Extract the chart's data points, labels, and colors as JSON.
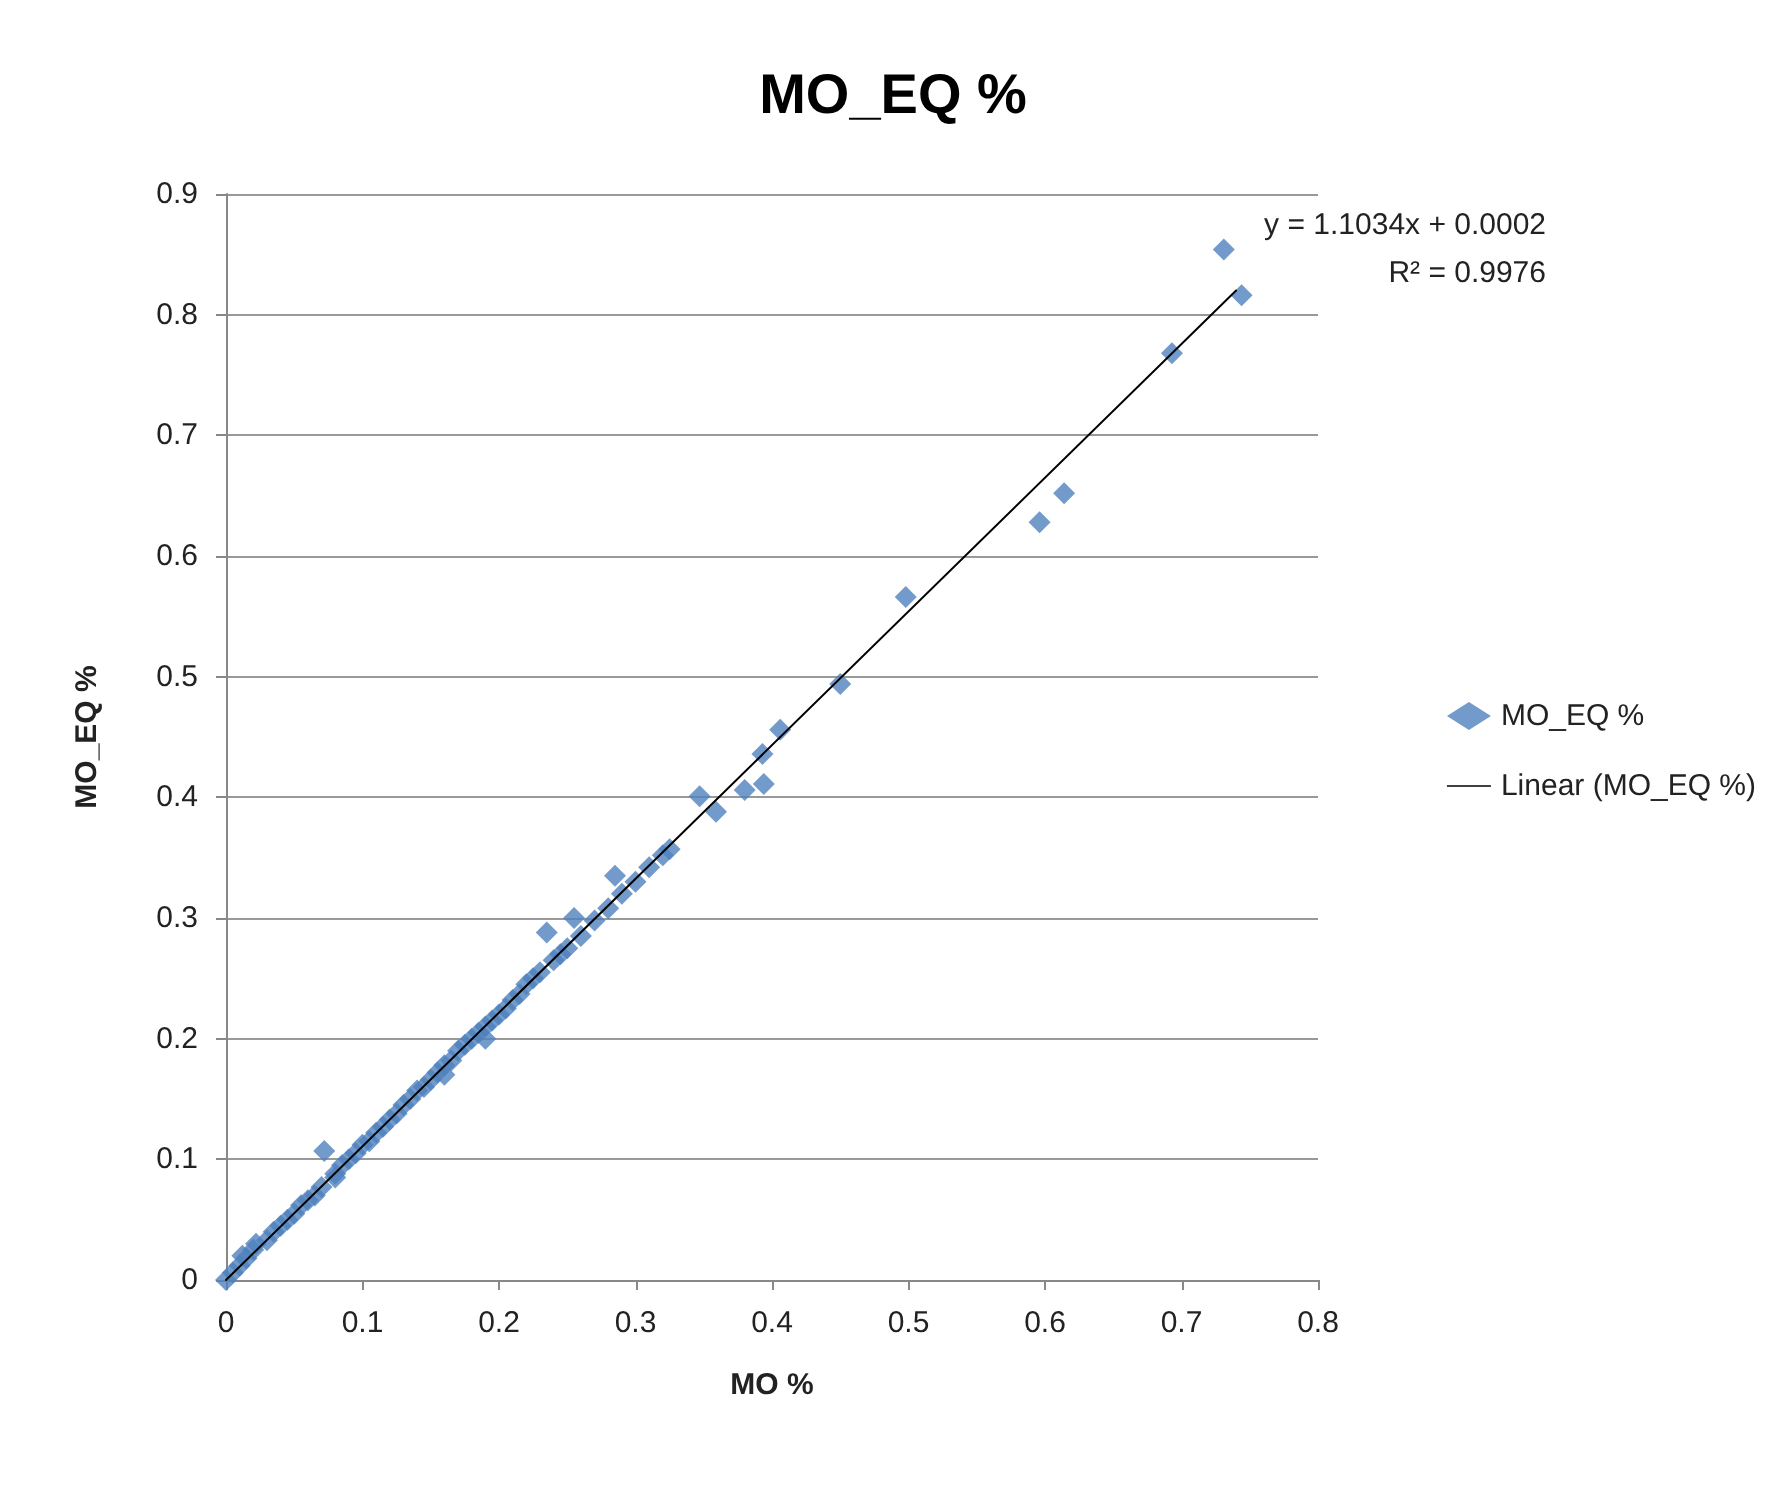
{
  "chart_data": {
    "type": "scatter",
    "title": "MO_EQ %",
    "xlabel": "MO %",
    "ylabel": "MO_EQ %",
    "annotations": [
      "y = 1.1034x + 0.0002",
      "R² = 0.9976"
    ],
    "xlim": [
      0,
      0.8
    ],
    "xticks": [
      0,
      0.1,
      0.2,
      0.3,
      0.4,
      0.5,
      0.6,
      0.7,
      0.8
    ],
    "ylim": [
      0,
      0.9
    ],
    "yticks": [
      0,
      0.1,
      0.2,
      0.3,
      0.4,
      0.5,
      0.6,
      0.7,
      0.8,
      0.9
    ],
    "grid": "y",
    "legend": "right",
    "marker": "diamond",
    "series": [
      {
        "name": "MO_EQ %",
        "color": "#4f81bd",
        "x": [
          0,
          0.005,
          0.01,
          0.012,
          0.015,
          0.02,
          0.022,
          0.03,
          0.035,
          0.04,
          0.045,
          0.05,
          0.055,
          0.06,
          0.065,
          0.07,
          0.072,
          0.08,
          0.08,
          0.085,
          0.09,
          0.095,
          0.1,
          0.105,
          0.11,
          0.115,
          0.12,
          0.125,
          0.13,
          0.135,
          0.14,
          0.145,
          0.15,
          0.155,
          0.16,
          0.16,
          0.165,
          0.17,
          0.175,
          0.18,
          0.185,
          0.19,
          0.19,
          0.195,
          0.2,
          0.205,
          0.21,
          0.215,
          0.22,
          0.225,
          0.23,
          0.235,
          0.24,
          0.245,
          0.25,
          0.255,
          0.26,
          0.27,
          0.28,
          0.285,
          0.29,
          0.3,
          0.31,
          0.32,
          0.325,
          0.347,
          0.359,
          0.38,
          0.393,
          0.394,
          0.406,
          0.45,
          0.498,
          0.596,
          0.614,
          0.693,
          0.731,
          0.744
        ],
        "values": [
          0,
          0.006,
          0.012,
          0.02,
          0.018,
          0.025,
          0.03,
          0.033,
          0.04,
          0.045,
          0.05,
          0.055,
          0.062,
          0.066,
          0.07,
          0.077,
          0.107,
          0.088,
          0.085,
          0.095,
          0.1,
          0.105,
          0.112,
          0.115,
          0.122,
          0.127,
          0.133,
          0.138,
          0.145,
          0.15,
          0.157,
          0.16,
          0.166,
          0.172,
          0.178,
          0.17,
          0.182,
          0.19,
          0.195,
          0.2,
          0.205,
          0.21,
          0.2,
          0.215,
          0.22,
          0.225,
          0.232,
          0.237,
          0.245,
          0.25,
          0.255,
          0.288,
          0.265,
          0.27,
          0.275,
          0.3,
          0.285,
          0.298,
          0.308,
          0.335,
          0.32,
          0.33,
          0.342,
          0.352,
          0.357,
          0.401,
          0.388,
          0.406,
          0.436,
          0.411,
          0.456,
          0.494,
          0.566,
          0.628,
          0.652,
          0.768,
          0.854,
          0.816
        ]
      },
      {
        "name": "Linear (MO_EQ %)",
        "type": "line",
        "color": "#000000",
        "marker": "none",
        "line_style": "solid",
        "x": [
          0,
          0.74
        ],
        "values": [
          0,
          0.82
        ]
      }
    ]
  }
}
